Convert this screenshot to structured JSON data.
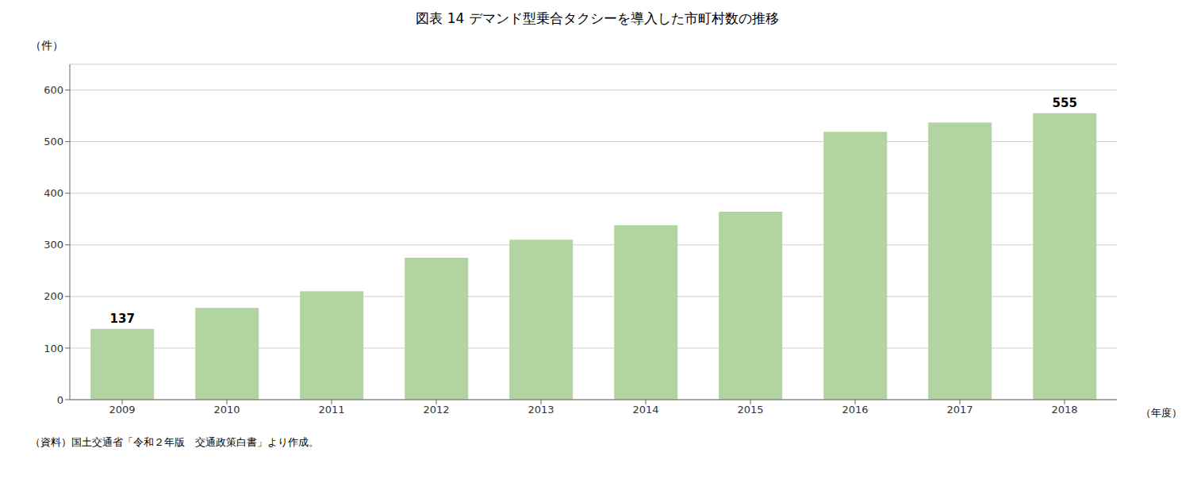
{
  "chart_data": {
    "type": "bar",
    "title": "図表 14  デマンド型乗合タクシーを導入した市町村数の推移",
    "ylabel": "（件）",
    "xlabel": "（年度）",
    "categories": [
      "2009",
      "2010",
      "2011",
      "2012",
      "2013",
      "2014",
      "2015",
      "2016",
      "2017",
      "2018"
    ],
    "values": [
      137,
      178,
      210,
      275,
      310,
      338,
      364,
      519,
      537,
      555
    ],
    "color": "#b2d4a0",
    "ylim": [
      0,
      650
    ],
    "yticks": [
      0,
      100,
      200,
      300,
      400,
      500,
      600
    ],
    "grid": true,
    "annotations": [
      {
        "category": "2009",
        "text": "137"
      },
      {
        "category": "2018",
        "text": "555"
      }
    ],
    "source": "（資料）国土交通省「令和２年版　交通政策白書」より作成。"
  }
}
